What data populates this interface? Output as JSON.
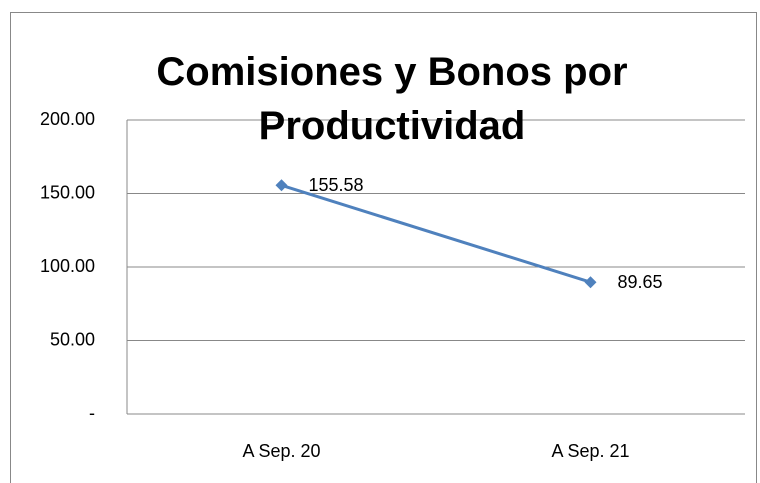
{
  "chart_data": {
    "type": "line",
    "title": "Comisiones y Bonos por Productividad",
    "categories": [
      "A Sep. 20",
      "A Sep. 21"
    ],
    "series": [
      {
        "name": "Comisiones y Bonos por Productividad",
        "color": "#4f81bd",
        "values": [
          155.58,
          89.65
        ]
      }
    ],
    "ylim": [
      0,
      200
    ],
    "yticks": [
      {
        "value": 0,
        "label": "-"
      },
      {
        "value": 50,
        "label": "50.00"
      },
      {
        "value": 100,
        "label": "100.00"
      },
      {
        "value": 150,
        "label": "150.00"
      },
      {
        "value": 200,
        "label": "200.00"
      }
    ],
    "grid": true
  }
}
